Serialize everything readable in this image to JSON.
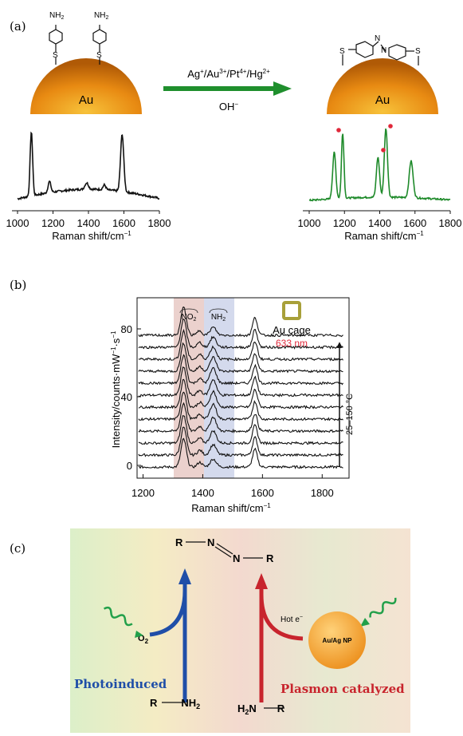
{
  "panel_a": {
    "label": "(a)",
    "au_label": "Au",
    "nh2": "NH",
    "nh2_sub": "2",
    "s_label": "S",
    "azo_n": "N",
    "ions_pre": "Ag",
    "ions_1": "+",
    "ions_mid1": "/Au",
    "ions_2": "3+",
    "ions_mid2": "/Pt",
    "ions_3": "4+",
    "ions_mid3": "/Hg",
    "ions_4": "2+",
    "base": "OH",
    "base_sup": "−",
    "xlabel": "Raman shift/cm",
    "xlabel_sup": "−1",
    "ticks": [
      "1000",
      "1200",
      "1400",
      "1600",
      "1800"
    ],
    "colors": {
      "before": "#111111",
      "after": "#1e8a2a",
      "arrow": "#1f8f2d",
      "peak_marker": "#e0283a"
    }
  },
  "panel_b": {
    "label": "(b)",
    "ylabel": "Intensity/counts·mW",
    "ylabel_sup1": "−1",
    "ylabel_mid": "·s",
    "ylabel_sup2": "−1",
    "xlabel": "Raman shift/cm",
    "xlabel_sup": "−1",
    "xticks": [
      "1200",
      "1400",
      "1600",
      "1800"
    ],
    "yticks": [
      "0",
      "40",
      "80"
    ],
    "band_no2": "NO",
    "band_no2_sub": "2",
    "band_nh2": "NH",
    "band_nh2_sub": "2",
    "cage_label": "Au cage",
    "laser": "633 nm",
    "temp": "25–150 °C",
    "colors": {
      "no2_band": "#e8c9c4",
      "nh2_band": "#cdd3ea",
      "laser": "#e0283a",
      "cage": "#a8a03a"
    }
  },
  "panel_c": {
    "label": "(c)",
    "azo_r1": "R",
    "azo_n1": "N",
    "azo_n2": "N",
    "azo_r2": "R",
    "o2": "O",
    "o2_sub": "2",
    "hot_e": "Hot e",
    "hot_e_sup": "−",
    "np_label": "Au/Ag NP",
    "photo": "Photoinduced",
    "plasmon": "Plasmon catalyzed",
    "amine_left_r": "R",
    "amine_left_nh": "NH",
    "amine_left_sub": "2",
    "amine_right_h": "H",
    "amine_right_sub": "2",
    "amine_right_n": "N",
    "amine_right_r": "R",
    "colors": {
      "photo": "#1f4ea8",
      "plasmon": "#c8242d",
      "np": "#f2a23a",
      "wave": "#22a04a"
    }
  }
}
